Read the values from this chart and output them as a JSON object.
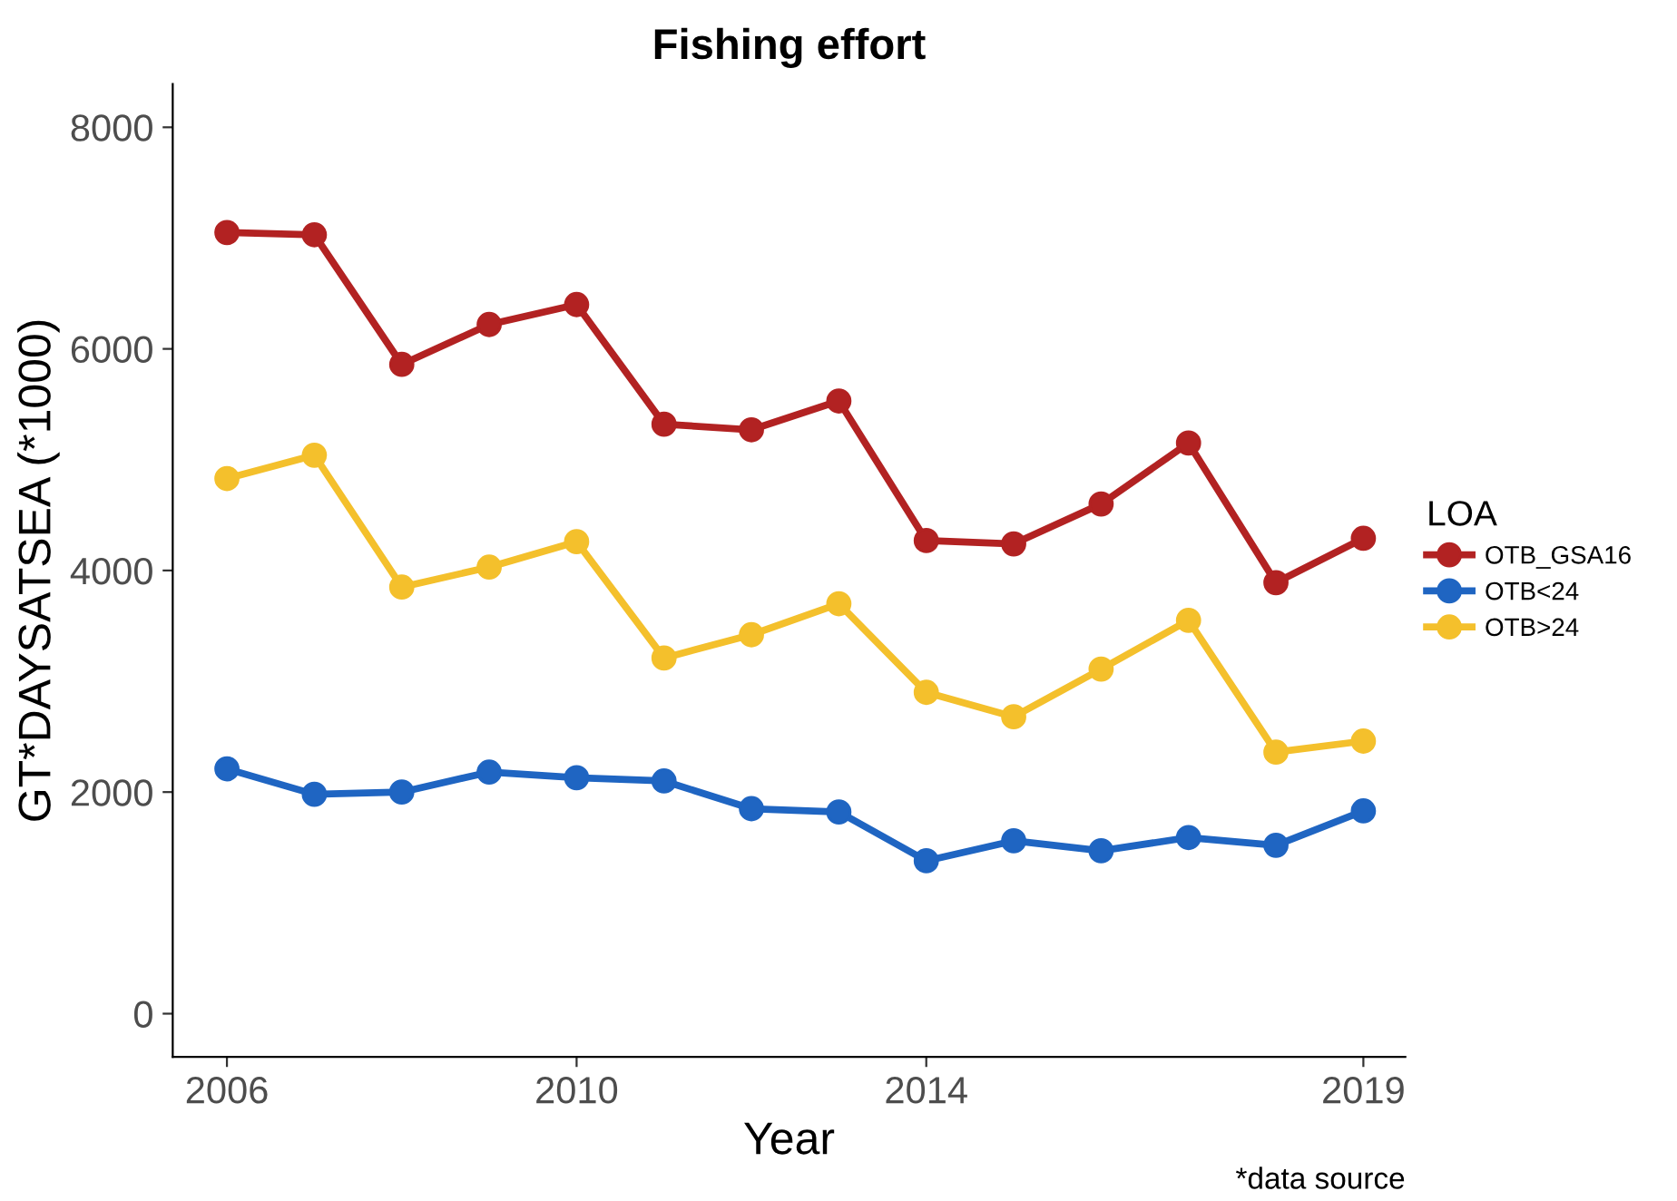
{
  "chart_data": {
    "type": "line",
    "title": "Fishing effort",
    "xlabel": "Year",
    "ylabel": "GT*DAYSATSEA (*1000)",
    "legend_title": "LOA",
    "x": [
      2006,
      2007,
      2008,
      2009,
      2010,
      2011,
      2012,
      2013,
      2014,
      2015,
      2016,
      2017,
      2018,
      2019
    ],
    "series": [
      {
        "name": "OTB_GSA16",
        "color": "#b22222",
        "values": [
          7050,
          7030,
          5860,
          6220,
          6400,
          5320,
          5270,
          5530,
          4270,
          4240,
          4600,
          5150,
          3890,
          4290
        ]
      },
      {
        "name": "OTB<24",
        "color": "#1f65c2",
        "values": [
          2210,
          1980,
          2000,
          2180,
          2130,
          2100,
          1850,
          1820,
          1380,
          1560,
          1470,
          1590,
          1520,
          1830
        ]
      },
      {
        "name": "OTB>24",
        "color": "#f4c02c",
        "values": [
          4830,
          5040,
          3850,
          4030,
          4260,
          3210,
          3420,
          3700,
          2900,
          2680,
          3110,
          3550,
          2360,
          2460
        ]
      }
    ],
    "xlim": [
      2005.38,
      2019.48
    ],
    "xticks": [
      2006,
      2010,
      2014,
      2019
    ],
    "ylim": [
      -390,
      8390
    ],
    "yticks": [
      0,
      2000,
      4000,
      6000,
      8000
    ],
    "grid": false,
    "legend": "right",
    "marker": "circle",
    "line_style": "solid",
    "annotations": [
      "*data source"
    ]
  }
}
